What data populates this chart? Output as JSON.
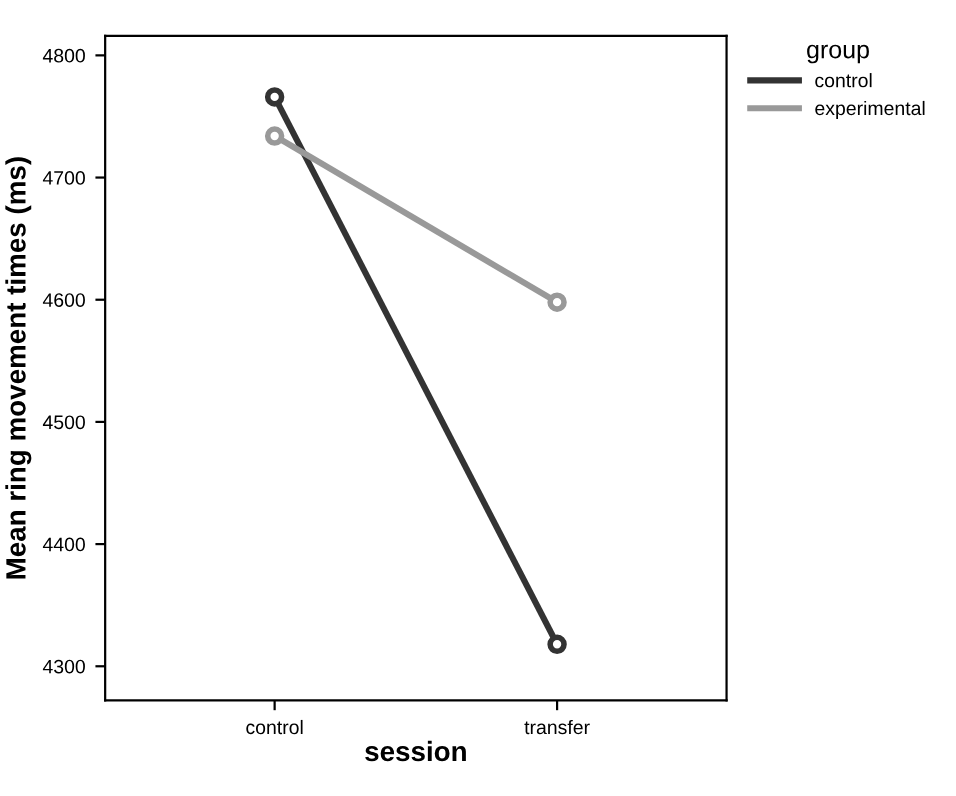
{
  "chart_data": {
    "type": "line",
    "categories": [
      "control",
      "transfer"
    ],
    "series": [
      {
        "name": "control",
        "color": "#333333",
        "values": [
          4766,
          4318
        ]
      },
      {
        "name": "experimental",
        "color": "#999999",
        "values": [
          4734,
          4598
        ]
      }
    ],
    "xlabel": "session",
    "ylabel": "Mean ring movement times (ms)",
    "legend_title": "group",
    "ylim": [
      4272,
      4816
    ],
    "yticks": [
      4300,
      4400,
      4500,
      4600,
      4700,
      4800
    ],
    "grid": false,
    "legend": "right",
    "marker": "circle",
    "line_style": "solid"
  }
}
